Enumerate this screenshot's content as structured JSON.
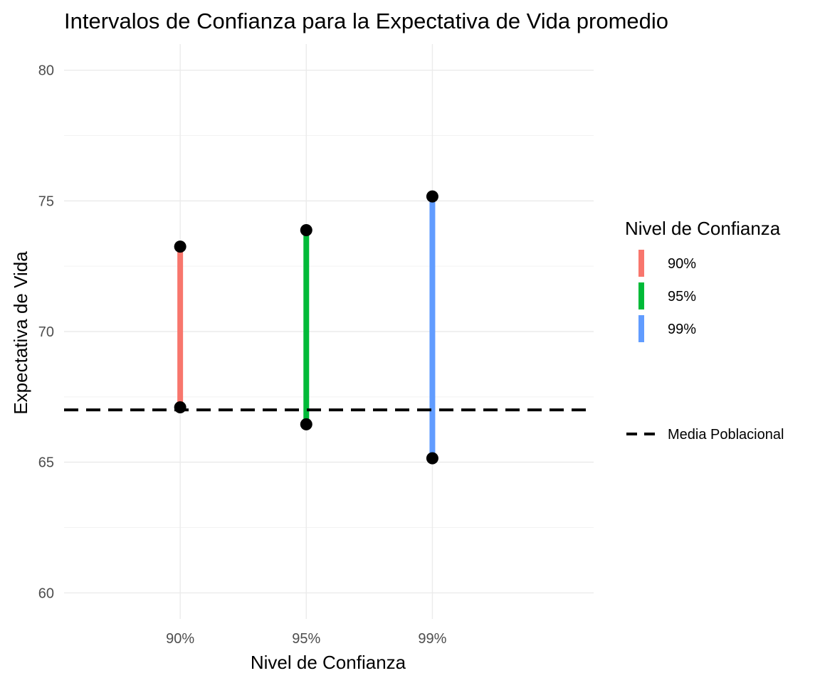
{
  "chart_data": {
    "type": "interval",
    "title": "Intervalos de Confianza para la Expectativa de Vida promedio",
    "xlabel": "Nivel de Confianza",
    "ylabel": "Expectativa de Vida",
    "categories": [
      "90%",
      "95%",
      "99%"
    ],
    "ylim": [
      59,
      81
    ],
    "yticks": [
      60,
      65,
      70,
      75,
      80
    ],
    "intervals": [
      {
        "category": "90%",
        "lower": 67.1,
        "upper": 73.25,
        "color": "#F8766D"
      },
      {
        "category": "95%",
        "lower": 66.45,
        "upper": 73.88,
        "color": "#00BA38"
      },
      {
        "category": "99%",
        "lower": 65.15,
        "upper": 75.17,
        "color": "#619CFF"
      }
    ],
    "reference_line": {
      "name": "Media Poblacional",
      "value": 67.0,
      "style": "dashed",
      "color": "#000000"
    },
    "legend": {
      "title": "Nivel de Confianza",
      "placement": "right",
      "entries": [
        {
          "label": "90%",
          "color": "#F8766D"
        },
        {
          "label": "95%",
          "color": "#00BA38"
        },
        {
          "label": "99%",
          "color": "#619CFF"
        }
      ],
      "line_entry": {
        "label": "Media Poblacional"
      }
    },
    "grid": true
  }
}
